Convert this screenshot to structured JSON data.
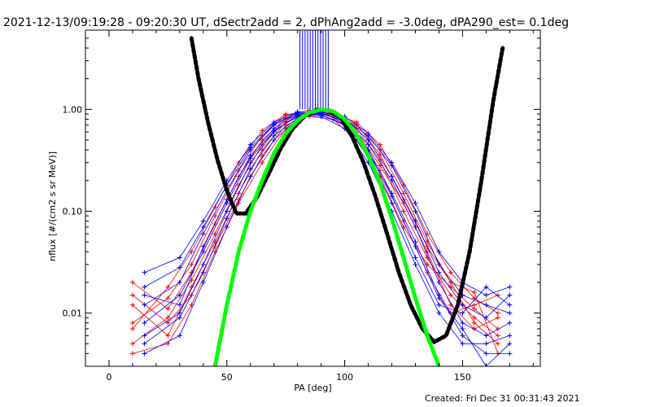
{
  "chart_data": {
    "type": "line",
    "title": "2021-12-13/09:19:28 - 09:20:30 UT, dSectr2add = 2, dPhAng2add = -3.0deg, dPA290_est=  0.1deg",
    "xlabel": "PA [deg]",
    "ylabel": "nflux [#/(cm2 s sr MeV)]",
    "xlim": [
      -10,
      183
    ],
    "ylim": [
      0.003,
      6
    ],
    "yscale": "log",
    "x_ticks": [
      0,
      50,
      100,
      150
    ],
    "x_tick_labels": [
      "0",
      "50",
      "100",
      "150"
    ],
    "y_ticks": [
      0.01,
      0.1,
      1.0
    ],
    "y_tick_labels": [
      "0.01",
      "0.10",
      "1.00"
    ],
    "grid": false,
    "legend": "none",
    "colors": {
      "red_traces": "#ff0000",
      "blue_traces": "#0000ff",
      "black_fit": "#000000",
      "green_fit": "#00ff00"
    },
    "vertical_lines": {
      "color": "#0000ff",
      "x_min": 81,
      "x_max": 93,
      "count": 12
    },
    "series": [
      {
        "color": "#000000",
        "style": "thick-dashed",
        "x": [
          35,
          38,
          42,
          46,
          50,
          54,
          58,
          63,
          68,
          73,
          78,
          83,
          88,
          93,
          98,
          103,
          108,
          113,
          118,
          123,
          128,
          133,
          138,
          143,
          148,
          153,
          158,
          163,
          167
        ],
        "y": [
          5.0,
          2.0,
          0.75,
          0.32,
          0.16,
          0.095,
          0.095,
          0.14,
          0.24,
          0.42,
          0.65,
          0.86,
          0.99,
          0.98,
          0.85,
          0.55,
          0.3,
          0.14,
          0.06,
          0.025,
          0.012,
          0.007,
          0.0052,
          0.006,
          0.012,
          0.04,
          0.2,
          1.2,
          4.0
        ]
      },
      {
        "color": "#00ff00",
        "style": "thick-dashed",
        "x": [
          45,
          50,
          55,
          60,
          65,
          70,
          75,
          80,
          85,
          90,
          95,
          100,
          105,
          110,
          115,
          120,
          125,
          130,
          135,
          140
        ],
        "y": [
          0.003,
          0.012,
          0.04,
          0.1,
          0.2,
          0.37,
          0.58,
          0.78,
          0.93,
          1.0,
          0.96,
          0.8,
          0.57,
          0.35,
          0.19,
          0.085,
          0.035,
          0.014,
          0.006,
          0.003
        ]
      },
      {
        "color": "#ff0000",
        "x": [
          10,
          25,
          35,
          45,
          55,
          65,
          75,
          85,
          95,
          105,
          115,
          125,
          135,
          145,
          155,
          165
        ],
        "y": [
          0.005,
          0.009,
          0.021,
          0.06,
          0.18,
          0.45,
          0.8,
          0.95,
          0.9,
          0.65,
          0.32,
          0.1,
          0.035,
          0.015,
          0.009,
          0.006
        ]
      },
      {
        "color": "#ff0000",
        "x": [
          10,
          25,
          35,
          45,
          55,
          65,
          75,
          85,
          95,
          105,
          115,
          125,
          135,
          145,
          155,
          165
        ],
        "y": [
          0.008,
          0.014,
          0.03,
          0.09,
          0.25,
          0.55,
          0.88,
          0.98,
          0.85,
          0.55,
          0.25,
          0.08,
          0.025,
          0.01,
          0.012,
          0.015
        ]
      },
      {
        "color": "#ff0000",
        "x": [
          10,
          25,
          35,
          45,
          55,
          65,
          75,
          85,
          95,
          105,
          115,
          125,
          135,
          145,
          155,
          165
        ],
        "y": [
          0.012,
          0.006,
          0.018,
          0.05,
          0.15,
          0.4,
          0.75,
          0.92,
          0.88,
          0.7,
          0.4,
          0.15,
          0.05,
          0.02,
          0.008,
          0.005
        ]
      },
      {
        "color": "#ff0000",
        "x": [
          10,
          25,
          35,
          45,
          55,
          65,
          75,
          85,
          95,
          105,
          115,
          125,
          135,
          145,
          155,
          165
        ],
        "y": [
          0.02,
          0.011,
          0.025,
          0.075,
          0.22,
          0.5,
          0.82,
          0.9,
          0.93,
          0.6,
          0.28,
          0.12,
          0.04,
          0.012,
          0.007,
          0.009
        ]
      },
      {
        "color": "#ff0000",
        "x": [
          10,
          25,
          35,
          45,
          55,
          65,
          75,
          85,
          95,
          105,
          115,
          125,
          135,
          145,
          155,
          165
        ],
        "y": [
          0.007,
          0.018,
          0.04,
          0.11,
          0.3,
          0.62,
          0.9,
          0.85,
          0.8,
          0.5,
          0.22,
          0.07,
          0.03,
          0.018,
          0.011,
          0.007
        ]
      },
      {
        "color": "#ff0000",
        "x": [
          10,
          25,
          35,
          45,
          55,
          65,
          75,
          85,
          95,
          105,
          115,
          125,
          135,
          145,
          155,
          165
        ],
        "y": [
          0.015,
          0.008,
          0.015,
          0.045,
          0.13,
          0.35,
          0.7,
          0.88,
          0.9,
          0.75,
          0.45,
          0.18,
          0.06,
          0.025,
          0.014,
          0.01
        ]
      },
      {
        "color": "#ff0000",
        "x": [
          10,
          25,
          35,
          45,
          55,
          65,
          75,
          85,
          95,
          105,
          115,
          125,
          135,
          145,
          155,
          165
        ],
        "y": [
          0.004,
          0.005,
          0.012,
          0.04,
          0.12,
          0.3,
          0.65,
          0.95,
          0.95,
          0.72,
          0.36,
          0.13,
          0.045,
          0.02,
          0.016,
          0.004
        ]
      },
      {
        "color": "#0000ff",
        "x": [
          15,
          30,
          40,
          50,
          60,
          70,
          80,
          90,
          100,
          110,
          120,
          130,
          140,
          150,
          160,
          170
        ],
        "y": [
          0.006,
          0.01,
          0.03,
          0.1,
          0.3,
          0.6,
          0.88,
          0.92,
          0.75,
          0.4,
          0.15,
          0.05,
          0.015,
          0.006,
          0.004,
          0.004
        ]
      },
      {
        "color": "#0000ff",
        "x": [
          15,
          30,
          40,
          50,
          60,
          70,
          80,
          90,
          100,
          110,
          120,
          130,
          140,
          150,
          160,
          170
        ],
        "y": [
          0.012,
          0.02,
          0.06,
          0.16,
          0.4,
          0.7,
          0.92,
          0.88,
          0.7,
          0.35,
          0.12,
          0.035,
          0.012,
          0.01,
          0.018,
          0.012
        ]
      },
      {
        "color": "#0000ff",
        "x": [
          15,
          30,
          40,
          50,
          60,
          70,
          80,
          90,
          100,
          110,
          120,
          130,
          140,
          150,
          160,
          170
        ],
        "y": [
          0.025,
          0.035,
          0.08,
          0.2,
          0.45,
          0.75,
          0.95,
          0.9,
          0.78,
          0.45,
          0.2,
          0.07,
          0.02,
          0.008,
          0.006,
          0.008
        ]
      },
      {
        "color": "#0000ff",
        "x": [
          15,
          30,
          40,
          50,
          60,
          70,
          80,
          90,
          100,
          110,
          120,
          130,
          140,
          150,
          160,
          170
        ],
        "y": [
          0.004,
          0.006,
          0.02,
          0.07,
          0.22,
          0.5,
          0.8,
          0.95,
          0.82,
          0.5,
          0.22,
          0.08,
          0.025,
          0.012,
          0.009,
          0.015
        ]
      },
      {
        "color": "#0000ff",
        "x": [
          15,
          30,
          40,
          50,
          60,
          70,
          80,
          90,
          100,
          110,
          120,
          130,
          140,
          150,
          160,
          170
        ],
        "y": [
          0.015,
          0.012,
          0.045,
          0.13,
          0.35,
          0.65,
          0.9,
          0.85,
          0.65,
          0.3,
          0.1,
          0.03,
          0.01,
          0.005,
          0.005,
          0.006
        ]
      },
      {
        "color": "#0000ff",
        "x": [
          15,
          30,
          40,
          50,
          60,
          70,
          80,
          90,
          100,
          110,
          120,
          130,
          140,
          150,
          160,
          170
        ],
        "y": [
          0.008,
          0.015,
          0.04,
          0.12,
          0.33,
          0.62,
          0.85,
          0.9,
          0.8,
          0.55,
          0.28,
          0.1,
          0.03,
          0.015,
          0.012,
          0.01
        ]
      },
      {
        "color": "#0000ff",
        "x": [
          15,
          30,
          40,
          50,
          60,
          70,
          80,
          90,
          100,
          110,
          120,
          130,
          140,
          150,
          160,
          170
        ],
        "y": [
          0.018,
          0.028,
          0.07,
          0.18,
          0.42,
          0.72,
          0.93,
          0.88,
          0.72,
          0.38,
          0.14,
          0.045,
          0.014,
          0.007,
          0.003,
          0.005
        ]
      },
      {
        "color": "#0000ff",
        "x": [
          15,
          30,
          40,
          50,
          60,
          70,
          80,
          90,
          100,
          110,
          120,
          130,
          140,
          150,
          160,
          170
        ],
        "y": [
          0.005,
          0.009,
          0.025,
          0.085,
          0.26,
          0.55,
          0.82,
          0.93,
          0.85,
          0.58,
          0.3,
          0.12,
          0.04,
          0.02,
          0.015,
          0.018
        ]
      }
    ]
  },
  "footer": {
    "created": "Created: Fri Dec 31 00:31:43 2021"
  }
}
